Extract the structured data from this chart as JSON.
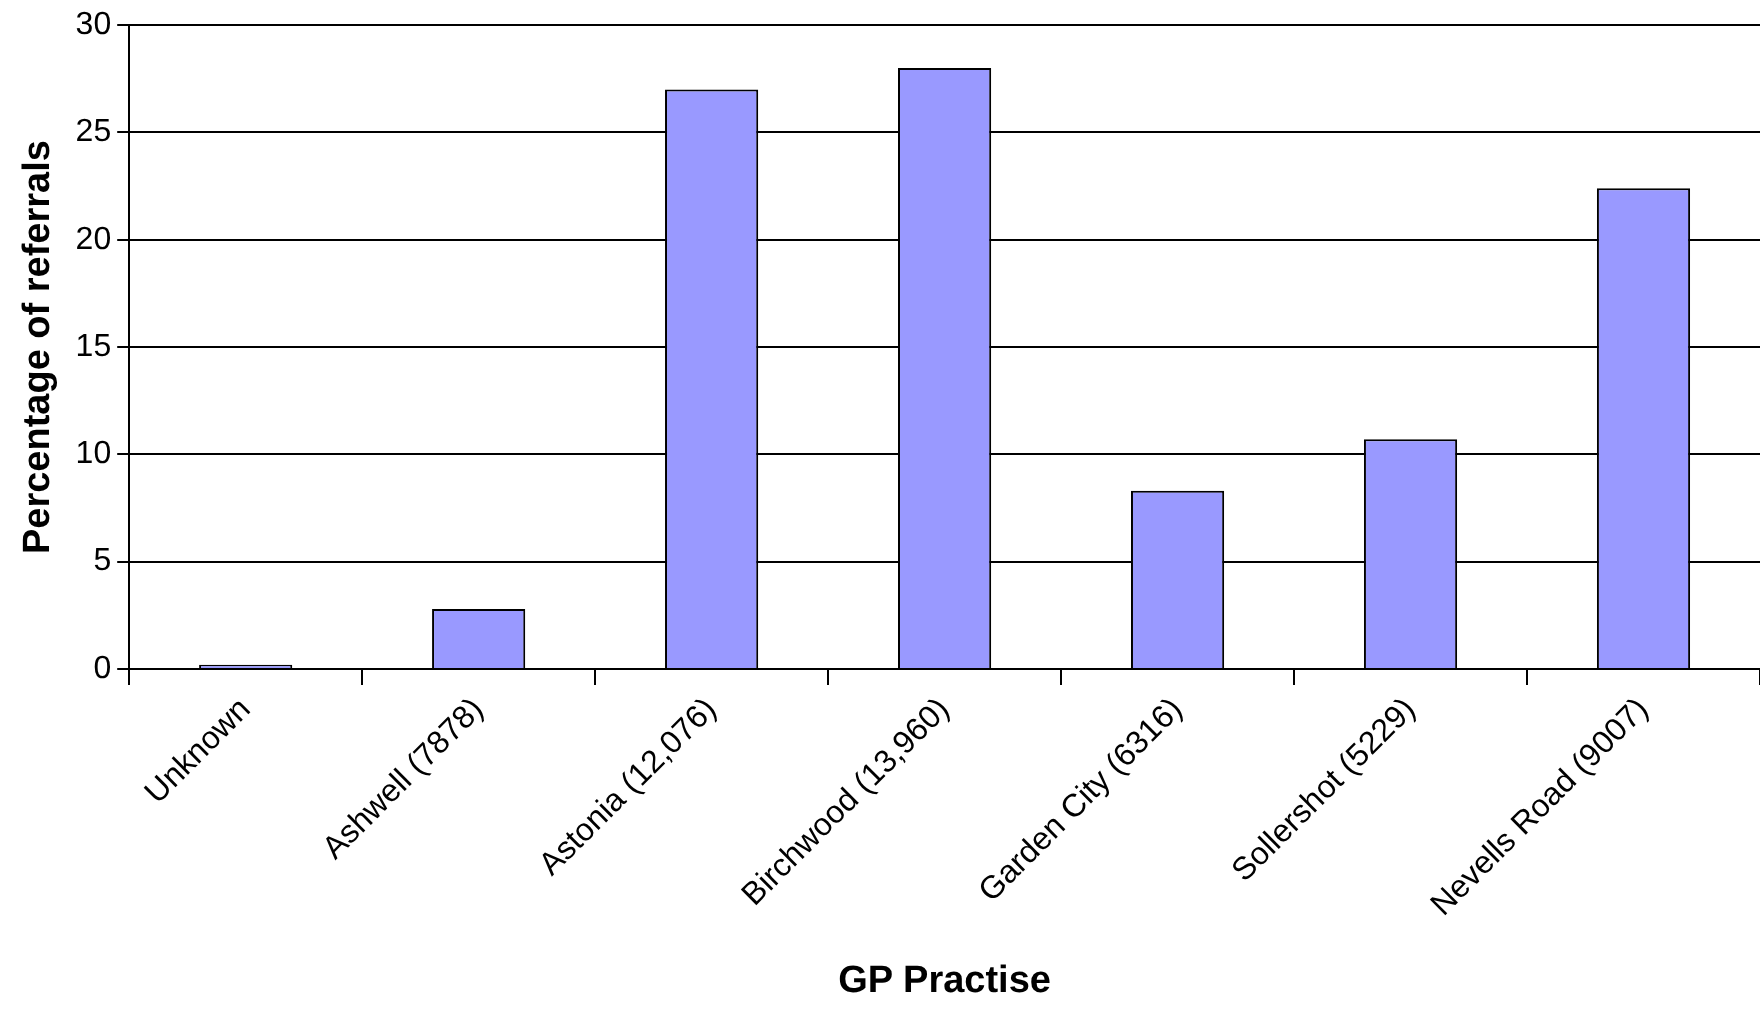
{
  "chart_data": {
    "type": "bar",
    "xlabel": "GP Practise",
    "ylabel": "Percentage of referrals",
    "categories": [
      "Unknown",
      "Ashwell (7878)",
      "Astonia (12,076)",
      "Birchwood (13,960)",
      "Garden City (6316)",
      "Sollershot (5229)",
      "Nevells Road (9007)"
    ],
    "values": [
      0.2,
      2.8,
      27,
      28,
      8.3,
      10.7,
      22.4
    ],
    "color": "#9999ff",
    "ylim": [
      0,
      30
    ],
    "yticks": [
      0,
      5,
      10,
      15,
      20,
      25,
      30
    ],
    "grid": "y",
    "legend": false
  }
}
